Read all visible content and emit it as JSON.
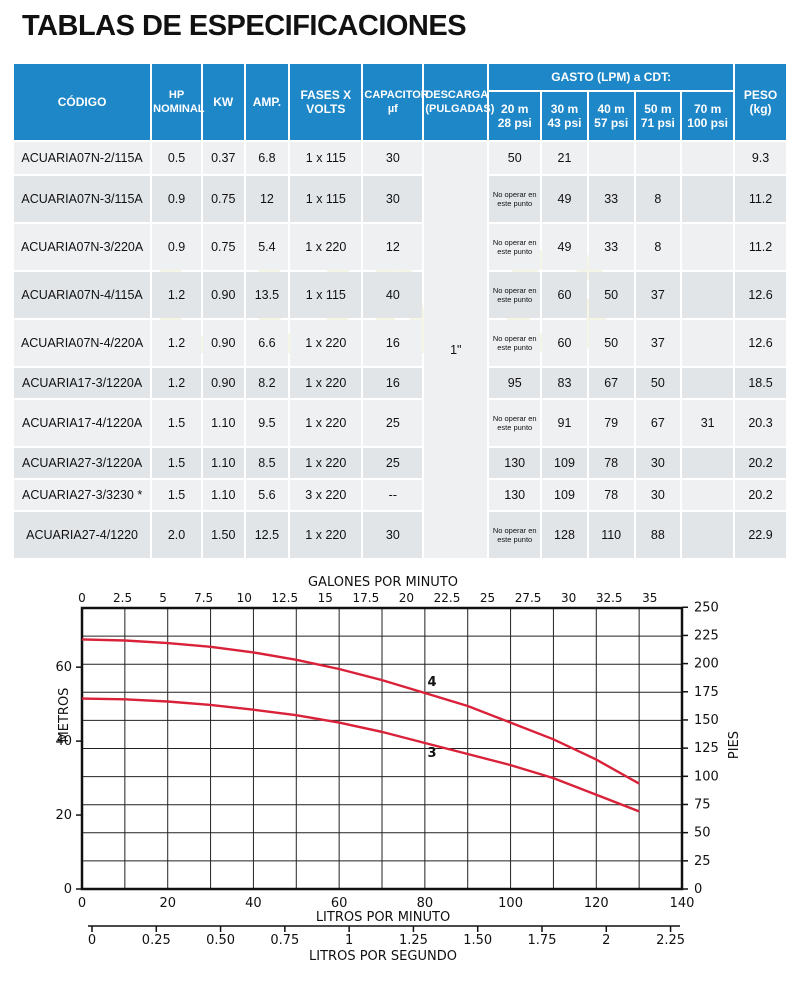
{
  "title": "TABLAS DE ESPECIFICACIONES",
  "table": {
    "headers": {
      "codigo": "CÓDIGO",
      "hp": [
        "HP",
        "NOMINAL"
      ],
      "kw": "KW",
      "amp": "AMP.",
      "fases": [
        "FASES X",
        "VOLTS"
      ],
      "capacitor": [
        "CAPACITOR",
        "µf"
      ],
      "descarga": [
        "DESCARGA",
        "(PULGADAS)"
      ],
      "gasto": "GASTO (LPM) a CDT:",
      "cdt": [
        {
          "m": "20 m",
          "psi": "28 psi"
        },
        {
          "m": "30 m",
          "psi": "43 psi"
        },
        {
          "m": "40 m",
          "psi": "57 psi"
        },
        {
          "m": "50 m",
          "psi": "71 psi"
        },
        {
          "m": "70 m",
          "psi": "100 psi"
        }
      ],
      "peso": [
        "PESO",
        "(kg)"
      ]
    },
    "descarga_value": "1\"",
    "rows": [
      {
        "code": "ACUARIA07N-2/115A",
        "hp": "0.5",
        "kw": "0.37",
        "amp": "6.8",
        "fases": "1 x 115",
        "cap": "30",
        "g20": "50",
        "g30": "21",
        "g40": "",
        "g50": "",
        "g70": "",
        "peso": "9.3"
      },
      {
        "code": "ACUARIA07N-3/115A",
        "hp": "0.9",
        "kw": "0.75",
        "amp": "12",
        "fases": "1 x 115",
        "cap": "30",
        "g20": "No operar en este punto",
        "g30": "49",
        "g40": "33",
        "g50": "8",
        "g70": "",
        "peso": "11.2"
      },
      {
        "code": "ACUARIA07N-3/220A",
        "hp": "0.9",
        "kw": "0.75",
        "amp": "5.4",
        "fases": "1 x 220",
        "cap": "12",
        "g20": "No operar en este punto",
        "g30": "49",
        "g40": "33",
        "g50": "8",
        "g70": "",
        "peso": "11.2"
      },
      {
        "code": "ACUARIA07N-4/115A",
        "hp": "1.2",
        "kw": "0.90",
        "amp": "13.5",
        "fases": "1 x 115",
        "cap": "40",
        "g20": "No operar en este punto",
        "g30": "60",
        "g40": "50",
        "g50": "37",
        "g70": "",
        "peso": "12.6"
      },
      {
        "code": "ACUARIA07N-4/220A",
        "hp": "1.2",
        "kw": "0.90",
        "amp": "6.6",
        "fases": "1 x 220",
        "cap": "16",
        "g20": "No operar en este punto",
        "g30": "60",
        "g40": "50",
        "g50": "37",
        "g70": "",
        "peso": "12.6"
      },
      {
        "code": "ACUARIA17-3/1220A",
        "hp": "1.2",
        "kw": "0.90",
        "amp": "8.2",
        "fases": "1 x 220",
        "cap": "16",
        "g20": "95",
        "g30": "83",
        "g40": "67",
        "g50": "50",
        "g70": "",
        "peso": "18.5"
      },
      {
        "code": "ACUARIA17-4/1220A",
        "hp": "1.5",
        "kw": "1.10",
        "amp": "9.5",
        "fases": "1 x 220",
        "cap": "25",
        "g20": "No operar en este punto",
        "g30": "91",
        "g40": "79",
        "g50": "67",
        "g70": "31",
        "peso": "20.3"
      },
      {
        "code": "ACUARIA27-3/1220A",
        "hp": "1.5",
        "kw": "1.10",
        "amp": "8.5",
        "fases": "1 x 220",
        "cap": "25",
        "g20": "130",
        "g30": "109",
        "g40": "78",
        "g50": "30",
        "g70": "",
        "peso": "20.2"
      },
      {
        "code": "ACUARIA27-3/3230 *",
        "hp": "1.5",
        "kw": "1.10",
        "amp": "5.6",
        "fases": "3 x 220",
        "cap": "--",
        "g20": "130",
        "g30": "109",
        "g40": "78",
        "g50": "30",
        "g70": "",
        "peso": "20.2"
      },
      {
        "code": "ACUARIA27-4/1220",
        "hp": "2.0",
        "kw": "1.50",
        "amp": "12.5",
        "fases": "1 x 220",
        "cap": "30",
        "g20": "No operar en este punto",
        "g30": "128",
        "g40": "110",
        "g50": "88",
        "g70": "",
        "peso": "22.9"
      }
    ]
  },
  "chart_data": {
    "type": "line",
    "xlabel": "LITROS POR MINUTO",
    "ylabel": "METROS",
    "y2label": "PIES",
    "top_axis_label": "GALONES POR MINUTO",
    "bottom2_axis_label": "LITROS POR SEGUNDO",
    "xlim": [
      0,
      140
    ],
    "ylim": [
      0,
      76
    ],
    "x_ticks": [
      0,
      20,
      40,
      60,
      80,
      100,
      120,
      140
    ],
    "y_ticks": [
      0,
      20,
      40,
      60
    ],
    "y2_ticks": [
      "0",
      "25",
      "50",
      "75",
      "100",
      "125",
      "150",
      "175",
      "200",
      "225",
      "250"
    ],
    "top_ticks": [
      "0",
      "2.5",
      "5",
      "7.5",
      "10",
      "12.5",
      "15",
      "17.5",
      "20",
      "22.5",
      "25",
      "27.5",
      "30",
      "32.5",
      "35"
    ],
    "bottom2_ticks": [
      "0",
      "0.25",
      "0.50",
      "0.75",
      "1",
      "1.25",
      "1.50",
      "1.75",
      "2",
      "2.25"
    ],
    "grid": true,
    "series": [
      {
        "name": "4",
        "color": "#d9213a",
        "x": [
          0,
          10,
          20,
          30,
          40,
          50,
          60,
          70,
          80,
          90,
          100,
          110,
          120,
          130
        ],
        "y": [
          67.5,
          67.2,
          66.5,
          65.5,
          64,
          62,
          59.5,
          56.5,
          53,
          49.5,
          45,
          40.5,
          35,
          28.5
        ]
      },
      {
        "name": "3",
        "color": "#d9213a",
        "x": [
          0,
          10,
          20,
          30,
          40,
          50,
          60,
          70,
          80,
          90,
          100,
          110,
          120,
          130
        ],
        "y": [
          51.5,
          51.3,
          50.7,
          49.8,
          48.5,
          47,
          45,
          42.5,
          39.5,
          36.5,
          33.5,
          30,
          25.5,
          21
        ]
      }
    ]
  }
}
